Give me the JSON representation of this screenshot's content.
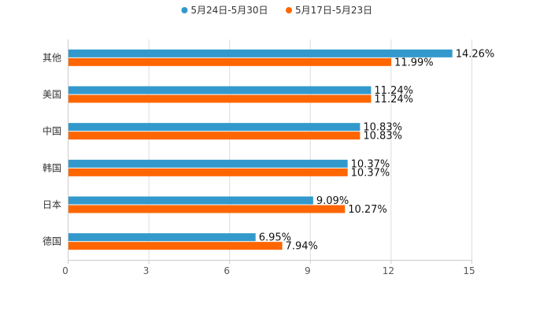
{
  "chart_data": {
    "type": "bar",
    "orientation": "horizontal",
    "title": "",
    "xlabel": "",
    "ylabel": "",
    "categories": [
      "其他",
      "美国",
      "中国",
      "韩国",
      "日本",
      "德国"
    ],
    "series": [
      {
        "name": "5月24日-5月30日",
        "color": "#3399cc",
        "values": [
          14.26,
          11.24,
          10.83,
          10.37,
          9.09,
          6.95
        ],
        "labels": [
          "14.26%",
          "11.24%",
          "10.83%",
          "10.37%",
          "9.09%",
          "6.95%"
        ]
      },
      {
        "name": "5月17日-5月23日",
        "color": "#ff6600",
        "values": [
          11.99,
          11.24,
          10.83,
          10.37,
          10.27,
          7.94
        ],
        "labels": [
          "11.99%",
          "11.24%",
          "10.83%",
          "10.37%",
          "10.27%",
          "7.94%"
        ]
      }
    ],
    "xlim": [
      0,
      15
    ],
    "xticks": [
      0,
      3,
      6,
      9,
      12,
      15
    ],
    "xtick_labels": [
      "0",
      "3",
      "6",
      "9",
      "12",
      "15"
    ],
    "grid": true,
    "legend_position": "top-center"
  }
}
